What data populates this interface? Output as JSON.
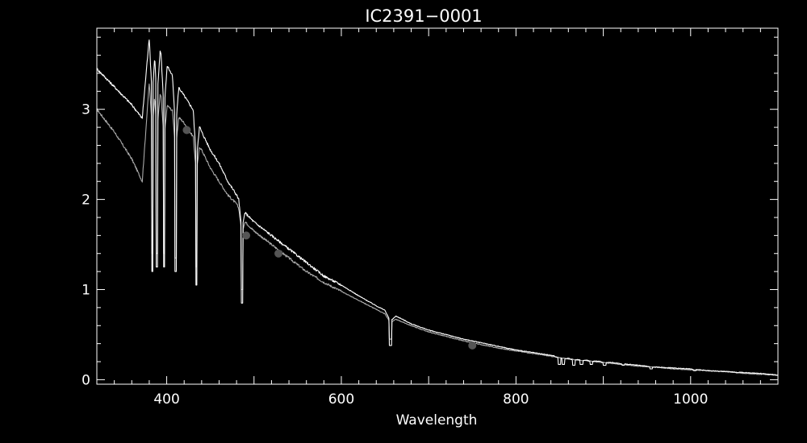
{
  "chart_data": {
    "type": "line",
    "title": "IC2391−0001",
    "xlabel": "Wavelength",
    "ylabel": "",
    "xlim": [
      320,
      1100
    ],
    "ylim": [
      -0.05,
      3.9
    ],
    "xticks": [
      400,
      600,
      800,
      1000
    ],
    "yticks": [
      0,
      1,
      2,
      3
    ],
    "grid": false,
    "legend": "none",
    "colors": {
      "background": "#000000",
      "axes": "#ffffff",
      "spectrum_observed": "#ffffff",
      "spectrum_model": "#aaaaaa",
      "photometry_points": "#555555"
    },
    "series": [
      {
        "style": "spectrum-white",
        "continuum": [
          [
            320,
            3.45
          ],
          [
            340,
            3.25
          ],
          [
            360,
            3.05
          ],
          [
            372,
            2.9
          ],
          [
            380,
            3.8
          ],
          [
            390,
            3.7
          ],
          [
            400,
            3.5
          ],
          [
            410,
            3.3
          ],
          [
            420,
            3.15
          ],
          [
            430,
            3.0
          ],
          [
            440,
            2.75
          ],
          [
            450,
            2.55
          ],
          [
            460,
            2.4
          ],
          [
            470,
            2.2
          ],
          [
            480,
            2.05
          ],
          [
            490,
            1.85
          ],
          [
            500,
            1.75
          ],
          [
            520,
            1.6
          ],
          [
            540,
            1.45
          ],
          [
            560,
            1.3
          ],
          [
            580,
            1.15
          ],
          [
            600,
            1.05
          ],
          [
            620,
            0.93
          ],
          [
            640,
            0.82
          ],
          [
            660,
            0.72
          ],
          [
            680,
            0.62
          ],
          [
            700,
            0.55
          ],
          [
            720,
            0.5
          ],
          [
            740,
            0.45
          ],
          [
            760,
            0.41
          ],
          [
            780,
            0.37
          ],
          [
            800,
            0.33
          ],
          [
            820,
            0.3
          ],
          [
            840,
            0.27
          ],
          [
            860,
            0.24
          ],
          [
            880,
            0.22
          ],
          [
            900,
            0.2
          ],
          [
            920,
            0.18
          ],
          [
            940,
            0.16
          ],
          [
            960,
            0.14
          ],
          [
            980,
            0.13
          ],
          [
            1000,
            0.12
          ],
          [
            1020,
            0.1
          ],
          [
            1040,
            0.09
          ],
          [
            1060,
            0.08
          ],
          [
            1080,
            0.07
          ],
          [
            1100,
            0.05
          ]
        ],
        "absorption_lines": [
          [
            383.5,
            1.2
          ],
          [
            388.9,
            1.25
          ],
          [
            397.0,
            1.25
          ],
          [
            410.2,
            1.2
          ],
          [
            434.0,
            1.05
          ],
          [
            486.1,
            0.85
          ],
          [
            656.3,
            0.38
          ],
          [
            849.8,
            0.17
          ],
          [
            854.2,
            0.17
          ],
          [
            866.2,
            0.16
          ],
          [
            875.0,
            0.17
          ],
          [
            886.3,
            0.17
          ],
          [
            901.5,
            0.16
          ],
          [
            922.9,
            0.16
          ],
          [
            954.6,
            0.12
          ],
          [
            1004.9,
            0.1
          ]
        ]
      },
      {
        "style": "spectrum-gray",
        "continuum": [
          [
            320,
            3.0
          ],
          [
            340,
            2.75
          ],
          [
            360,
            2.45
          ],
          [
            372,
            2.2
          ],
          [
            380,
            3.3
          ],
          [
            390,
            3.2
          ],
          [
            400,
            3.05
          ],
          [
            410,
            2.95
          ],
          [
            420,
            2.85
          ],
          [
            430,
            2.7
          ],
          [
            440,
            2.55
          ],
          [
            450,
            2.35
          ],
          [
            460,
            2.2
          ],
          [
            470,
            2.05
          ],
          [
            480,
            1.95
          ],
          [
            490,
            1.75
          ],
          [
            500,
            1.65
          ],
          [
            520,
            1.5
          ],
          [
            540,
            1.35
          ],
          [
            560,
            1.2
          ],
          [
            580,
            1.08
          ],
          [
            600,
            0.98
          ],
          [
            620,
            0.88
          ],
          [
            640,
            0.78
          ],
          [
            660,
            0.68
          ],
          [
            680,
            0.6
          ],
          [
            700,
            0.53
          ],
          [
            720,
            0.48
          ],
          [
            740,
            0.43
          ],
          [
            760,
            0.39
          ],
          [
            780,
            0.35
          ],
          [
            800,
            0.32
          ],
          [
            820,
            0.29
          ],
          [
            840,
            0.26
          ],
          [
            860,
            0.23
          ],
          [
            880,
            0.21
          ],
          [
            900,
            0.19
          ],
          [
            920,
            0.17
          ],
          [
            940,
            0.15
          ],
          [
            960,
            0.14
          ],
          [
            980,
            0.12
          ],
          [
            1000,
            0.11
          ],
          [
            1020,
            0.1
          ],
          [
            1040,
            0.09
          ],
          [
            1060,
            0.07
          ],
          [
            1080,
            0.06
          ],
          [
            1100,
            0.05
          ]
        ],
        "absorption_lines": [
          [
            383.5,
            1.4
          ],
          [
            388.9,
            1.4
          ],
          [
            397.0,
            1.4
          ],
          [
            410.2,
            1.35
          ],
          [
            434.0,
            1.25
          ],
          [
            486.1,
            1.0
          ],
          [
            656.3,
            0.45
          ]
        ]
      },
      {
        "style": "photometry",
        "points": [
          [
            423,
            2.77
          ],
          [
            491,
            1.6
          ],
          [
            528,
            1.4
          ],
          [
            750,
            0.38
          ]
        ]
      }
    ]
  }
}
